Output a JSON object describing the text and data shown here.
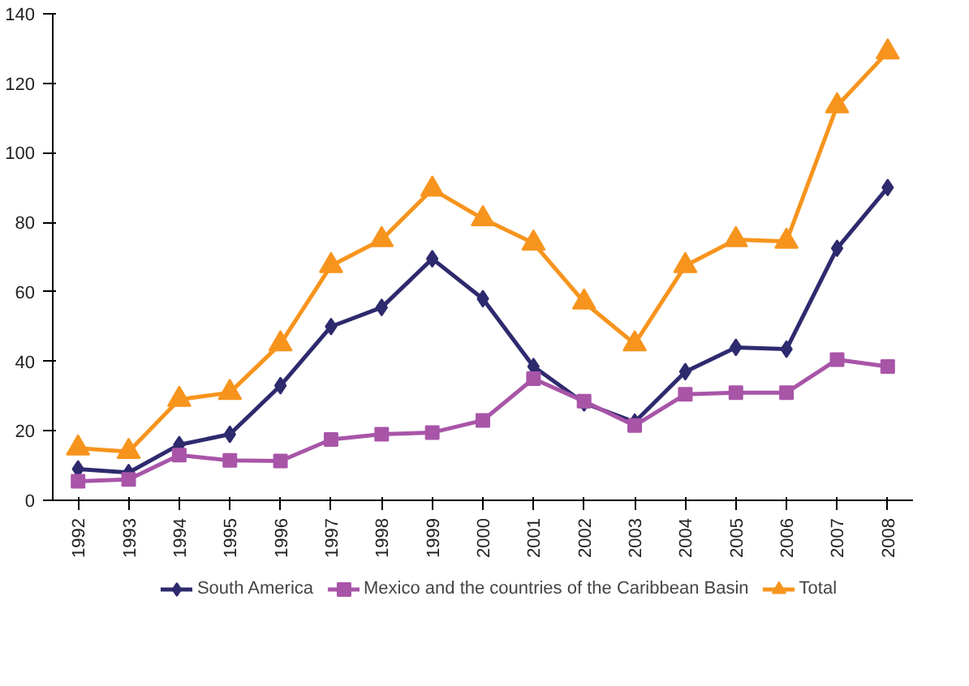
{
  "chart_data": {
    "type": "line",
    "categories": [
      "1992",
      "1993",
      "1994",
      "1995",
      "1996",
      "1997",
      "1998",
      "1999",
      "2000",
      "2001",
      "2002",
      "2003",
      "2004",
      "2005",
      "2006",
      "2007",
      "2008"
    ],
    "series": [
      {
        "name": "South America",
        "color": "#2e2a6e",
        "marker": "diamond",
        "values": [
          9,
          8,
          16,
          19,
          33,
          50,
          55.5,
          69.5,
          58,
          38.5,
          28,
          22.5,
          37,
          44,
          43.5,
          72.5,
          90
        ]
      },
      {
        "name": "Mexico and the countries of the Caribbean Basin",
        "color": "#a855a8",
        "marker": "square",
        "values": [
          5.5,
          6,
          13,
          11.5,
          11.3,
          17.5,
          19,
          19.5,
          23,
          35,
          28.5,
          21.5,
          30.5,
          31,
          31,
          40.5,
          38.5
        ]
      },
      {
        "name": "Total",
        "color": "#f7941d",
        "marker": "triangle",
        "values": [
          15,
          14,
          29,
          31,
          45,
          67.5,
          75,
          89.5,
          81,
          74,
          57,
          45,
          67.5,
          75,
          74.5,
          113.5,
          129
        ]
      }
    ],
    "ylim": [
      0,
      140
    ],
    "yticks": [
      0,
      20,
      40,
      60,
      80,
      100,
      120,
      140
    ],
    "grid": false,
    "legend": "bottom",
    "line_style": "solid"
  }
}
